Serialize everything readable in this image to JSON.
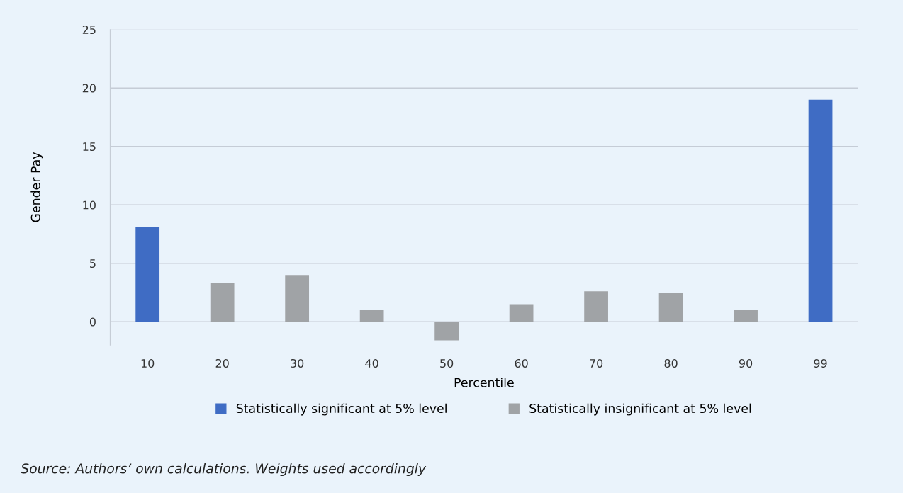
{
  "chart_data": {
    "type": "bar",
    "stacked": true,
    "xlabel": "Percentile",
    "ylabel": "Gender Pay",
    "categories": [
      "10",
      "20",
      "30",
      "40",
      "50",
      "60",
      "70",
      "80",
      "90",
      "99"
    ],
    "series": [
      {
        "name": "Statistically significant at 5% level",
        "color": "#3f6cc4",
        "values": [
          8.1,
          null,
          null,
          null,
          null,
          null,
          null,
          null,
          null,
          19.0
        ]
      },
      {
        "name": "Statistically insignificant at 5% level",
        "color": "#a0a3a6",
        "values": [
          null,
          3.3,
          4.0,
          1.0,
          -1.6,
          1.5,
          2.6,
          2.5,
          1.0,
          null
        ]
      }
    ],
    "ylim": [
      -2,
      25
    ],
    "yticks": [
      0,
      5,
      10,
      15,
      20,
      25
    ],
    "grid": "y",
    "legend": "bottom",
    "annotations": [
      "Source: Authors’ own calculations. Weights used accordingly"
    ]
  }
}
